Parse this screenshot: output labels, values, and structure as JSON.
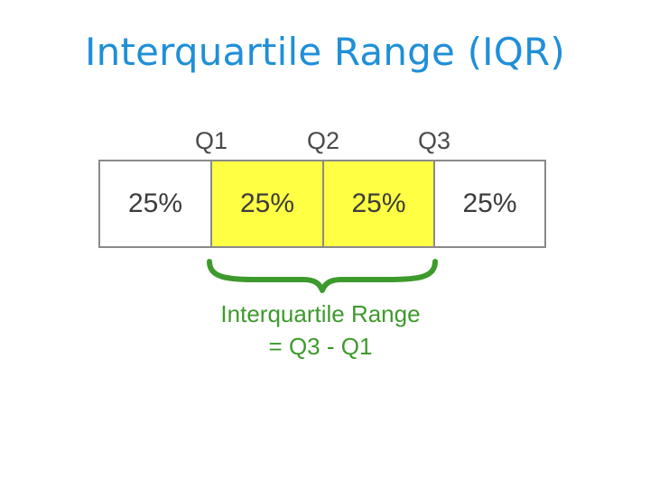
{
  "title": "Interquartile Range (IQR)",
  "quartiles": [
    {
      "label": "Q1"
    },
    {
      "label": "Q2"
    },
    {
      "label": "Q3"
    }
  ],
  "segments": [
    {
      "label": "25%",
      "highlight": false
    },
    {
      "label": "25%",
      "highlight": true
    },
    {
      "label": "25%",
      "highlight": true
    },
    {
      "label": "25%",
      "highlight": false
    }
  ],
  "range": {
    "line1": "Interquartile Range",
    "line2": "= Q3 - Q1"
  },
  "colors": {
    "title": "#1f8fd8",
    "highlight": "#ffff44",
    "plain": "#ffffff",
    "border": "#8a8a8a",
    "brace": "#3d9a2c"
  }
}
